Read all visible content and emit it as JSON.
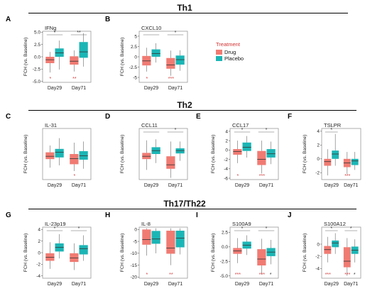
{
  "sections": [
    {
      "title": "Th1"
    },
    {
      "title": "Th2"
    },
    {
      "title": "Th17/Th22"
    }
  ],
  "legend": {
    "title": "Treatment",
    "items": [
      {
        "label": "Drug",
        "color": "#f07b73"
      },
      {
        "label": "Placebo",
        "color": "#1cb5b5"
      }
    ]
  },
  "colors": {
    "drug": "#f07b73",
    "placebo": "#1cb5b5",
    "sig_star": "#d23a3a"
  },
  "chart_data": [
    {
      "panel": "A",
      "type": "box",
      "title": "IFNg",
      "ylabel": "FCH (vs. Baseline)",
      "categories": [
        "Day29",
        "Day71"
      ],
      "ylim": [
        -5.2,
        5.2
      ],
      "yticks": [
        -5.0,
        -2.5,
        0.0,
        2.5,
        5.0
      ],
      "tick_labels": [
        "-5.0",
        "-2.5",
        "0.0",
        "2.5",
        "5.0"
      ],
      "series": [
        {
          "name": "Drug",
          "boxes": [
            {
              "whisker_low": -3.2,
              "q1": -1.3,
              "median": -0.6,
              "q3": 0.0,
              "whisker_high": 1.0
            },
            {
              "whisker_low": -3.0,
              "q1": -1.6,
              "median": -0.9,
              "q3": 0.1,
              "whisker_high": 1.3
            }
          ]
        },
        {
          "name": "Placebo",
          "boxes": [
            {
              "whisker_low": -2.6,
              "q1": 0.0,
              "median": 0.8,
              "q3": 1.7,
              "whisker_high": 3.3
            },
            {
              "whisker_low": -2.0,
              "q1": -0.2,
              "median": 1.0,
              "q3": 3.0,
              "whisker_high": 4.8
            }
          ]
        }
      ],
      "brackets": [
        {
          "label": "*"
        },
        {
          "label": "**"
        }
      ],
      "below": [
        {
          "label": "*"
        },
        {
          "label": "**"
        }
      ]
    },
    {
      "panel": "B",
      "type": "box",
      "title": "CXCL10",
      "ylabel": "FCH (vs. Baseline)",
      "categories": [
        "Day29",
        "Day71"
      ],
      "ylim": [
        -6.2,
        6.2
      ],
      "yticks": [
        -5,
        -2.5,
        0,
        2.5,
        5
      ],
      "tick_labels": [
        "-5",
        "-2.5",
        "0",
        "2.5",
        "5"
      ],
      "series": [
        {
          "name": "Drug",
          "boxes": [
            {
              "whisker_low": -3.6,
              "q1": -2.1,
              "median": -1.0,
              "q3": 0.2,
              "whisker_high": 2.2
            },
            {
              "whisker_low": -4.6,
              "q1": -2.9,
              "median": -2.0,
              "q3": -0.3,
              "whisker_high": 1.5
            }
          ]
        },
        {
          "name": "Placebo",
          "boxes": [
            {
              "whisker_low": -1.4,
              "q1": 0.0,
              "median": 0.8,
              "q3": 1.8,
              "whisker_high": 3.3
            },
            {
              "whisker_low": -3.4,
              "q1": -1.9,
              "median": -0.7,
              "q3": 0.3,
              "whisker_high": 1.6
            }
          ]
        }
      ],
      "brackets": [
        {
          "label": ""
        },
        {
          "label": "*"
        }
      ],
      "below": [
        {
          "label": "*"
        },
        {
          "label": "***"
        }
      ]
    },
    {
      "panel": "C",
      "type": "box",
      "title": "IL-31",
      "ylabel": "FCH (vs. Baseline)",
      "categories": [
        "Day29",
        "Day71"
      ],
      "ylim": [
        -4.5,
        4.5
      ],
      "yticks": [],
      "tick_labels": [],
      "series": [
        {
          "name": "Drug",
          "boxes": [
            {
              "whisker_low": -2.4,
              "q1": -0.9,
              "median": -0.4,
              "q3": 0.3,
              "whisker_high": 1.5
            },
            {
              "whisker_low": -3.0,
              "q1": -1.8,
              "median": -0.8,
              "q3": 0.0,
              "whisker_high": 2.0
            }
          ]
        },
        {
          "name": "Placebo",
          "boxes": [
            {
              "whisker_low": -2.0,
              "q1": -0.6,
              "median": 0.3,
              "q3": 0.9,
              "whisker_high": 2.8
            },
            {
              "whisker_low": -2.6,
              "q1": -1.0,
              "median": -0.3,
              "q3": 0.5,
              "whisker_high": 2.2
            }
          ]
        }
      ],
      "brackets": [],
      "below": [
        {
          "label": ""
        },
        {
          "label": "*"
        }
      ]
    },
    {
      "panel": "D",
      "type": "box",
      "title": "CCL11",
      "ylabel": "FCH (vs. Baseline)",
      "categories": [
        "Day29",
        "Day71"
      ],
      "ylim": [
        -4.5,
        4.5
      ],
      "yticks": [],
      "tick_labels": [],
      "series": [
        {
          "name": "Drug",
          "boxes": [
            {
              "whisker_low": -2.8,
              "q1": -0.9,
              "median": -0.4,
              "q3": 0.2,
              "whisker_high": 2.4
            },
            {
              "whisker_low": -4.2,
              "q1": -2.6,
              "median": -1.9,
              "q3": -0.4,
              "whisker_high": 2.2
            }
          ]
        },
        {
          "name": "Placebo",
          "boxes": [
            {
              "whisker_low": -1.6,
              "q1": 0.0,
              "median": 0.6,
              "q3": 1.2,
              "whisker_high": 2.6
            },
            {
              "whisker_low": -1.2,
              "q1": 0.1,
              "median": 0.6,
              "q3": 1.0,
              "whisker_high": 2.2
            }
          ]
        }
      ],
      "brackets": [
        {
          "label": ""
        },
        {
          "label": "*"
        }
      ],
      "below": []
    },
    {
      "panel": "E",
      "type": "box",
      "title": "CCL17",
      "ylabel": "FCH (vs. Baseline)",
      "categories": [
        "Day29",
        "Day71"
      ],
      "ylim": [
        -6.3,
        4.6
      ],
      "yticks": [
        -6,
        -4,
        -2,
        0,
        2,
        4
      ],
      "tick_labels": [
        "-6",
        "-4",
        "-2",
        "0",
        "2",
        "4"
      ],
      "series": [
        {
          "name": "Drug",
          "boxes": [
            {
              "whisker_low": -2.8,
              "q1": -1.0,
              "median": -0.3,
              "q3": 0.2,
              "whisker_high": 2.0
            },
            {
              "whisker_low": -5.0,
              "q1": -3.2,
              "median": -2.0,
              "q3": -0.2,
              "whisker_high": 2.0
            }
          ]
        },
        {
          "name": "Placebo",
          "boxes": [
            {
              "whisker_low": -1.6,
              "q1": -0.2,
              "median": 0.6,
              "q3": 1.6,
              "whisker_high": 3.0
            },
            {
              "whisker_low": -3.0,
              "q1": -1.6,
              "median": -0.8,
              "q3": 0.2,
              "whisker_high": 1.8
            }
          ]
        }
      ],
      "brackets": [
        {
          "label": "*"
        },
        {
          "label": "*"
        }
      ],
      "below": [
        {
          "label": "*"
        },
        {
          "label": "***"
        }
      ]
    },
    {
      "panel": "F",
      "type": "box",
      "title": "TSLPR",
      "ylabel": "FCH (vs. Baseline)",
      "categories": [
        "Day29",
        "Day71"
      ],
      "ylim": [
        -3.0,
        4.4
      ],
      "yticks": [
        -2,
        0,
        2,
        4
      ],
      "tick_labels": [
        "-2",
        "0",
        "2",
        "4"
      ],
      "series": [
        {
          "name": "Drug",
          "boxes": [
            {
              "whisker_low": -2.4,
              "q1": -1.0,
              "median": -0.4,
              "q3": 0.0,
              "whisker_high": 1.4
            },
            {
              "whisker_low": -2.2,
              "q1": -1.2,
              "median": -0.6,
              "q3": 0.0,
              "whisker_high": 1.0
            }
          ]
        },
        {
          "name": "Placebo",
          "boxes": [
            {
              "whisker_low": -1.0,
              "q1": 0.0,
              "median": 0.7,
              "q3": 1.2,
              "whisker_high": 3.6
            },
            {
              "whisker_low": -1.6,
              "q1": -0.9,
              "median": -0.3,
              "q3": 0.0,
              "whisker_high": 1.0
            }
          ]
        }
      ],
      "brackets": [
        {
          "label": "*"
        }
      ],
      "below": [
        {
          "label": ""
        },
        {
          "label": "***"
        }
      ]
    },
    {
      "panel": "G",
      "type": "box",
      "title": "IL-23p19",
      "ylabel": "FCH (vs. Baseline)",
      "categories": [
        "Day29",
        "Day71"
      ],
      "ylim": [
        -4.4,
        4.4
      ],
      "yticks": [
        -4,
        -2,
        0,
        2,
        4
      ],
      "tick_labels": [
        "-4",
        "-2",
        "0",
        "2",
        "4"
      ],
      "series": [
        {
          "name": "Drug",
          "boxes": [
            {
              "whisker_low": -2.8,
              "q1": -1.4,
              "median": -0.8,
              "q3": -0.1,
              "whisker_high": 1.8
            },
            {
              "whisker_low": -3.0,
              "q1": -1.6,
              "median": -0.9,
              "q3": -0.1,
              "whisker_high": 1.6
            }
          ]
        },
        {
          "name": "Placebo",
          "boxes": [
            {
              "whisker_low": -1.0,
              "q1": 0.2,
              "median": 0.9,
              "q3": 1.6,
              "whisker_high": 3.2
            },
            {
              "whisker_low": -1.4,
              "q1": -0.3,
              "median": 0.7,
              "q3": 1.3,
              "whisker_high": 3.0
            }
          ]
        }
      ],
      "brackets": [
        {
          "label": "*"
        },
        {
          "label": "*"
        }
      ],
      "below": []
    },
    {
      "panel": "H",
      "type": "box",
      "title": "IL-8",
      "ylabel": "FCH (vs. Baseline)",
      "categories": [
        "Day29",
        "Day71"
      ],
      "ylim": [
        -20.5,
        1.0
      ],
      "yticks": [
        0,
        -5,
        -10,
        -15,
        -20
      ],
      "tick_labels": [
        "0",
        "-5",
        "-10",
        "-15",
        "-20"
      ],
      "series": [
        {
          "name": "Drug",
          "boxes": [
            {
              "whisker_low": -11.0,
              "q1": -6.4,
              "median": -4.2,
              "q3": 0.0,
              "whisker_high": 0.5
            },
            {
              "whisker_low": -15.0,
              "q1": -10.2,
              "median": -7.8,
              "q3": -0.5,
              "whisker_high": 0.5
            }
          ]
        },
        {
          "name": "Placebo",
          "boxes": [
            {
              "whisker_low": -10.0,
              "q1": -6.0,
              "median": -4.0,
              "q3": -0.6,
              "whisker_high": 0.5
            },
            {
              "whisker_low": -10.5,
              "q1": -7.5,
              "median": -3.6,
              "q3": -0.5,
              "whisker_high": 0.5
            }
          ]
        }
      ],
      "brackets": [],
      "below": [
        {
          "label": "*"
        },
        {
          "label": "**"
        }
      ]
    },
    {
      "panel": "I",
      "type": "box",
      "title": "S100A9",
      "ylabel": "FCH (vs. Baseline)",
      "categories": [
        "Day29",
        "Day71"
      ],
      "ylim": [
        -5.4,
        3.4
      ],
      "yticks": [
        2.5,
        0.0,
        -2.5,
        -5.0
      ],
      "tick_labels": [
        "2.5",
        "0.0",
        "-2.5",
        "-5.0"
      ],
      "series": [
        {
          "name": "Drug",
          "boxes": [
            {
              "whisker_low": -2.8,
              "q1": -1.2,
              "median": -0.7,
              "q3": -0.2,
              "whisker_high": 1.5
            },
            {
              "whisker_low": -4.8,
              "q1": -3.2,
              "median": -2.1,
              "q3": -0.4,
              "whisker_high": 1.4
            }
          ]
        },
        {
          "name": "Placebo",
          "boxes": [
            {
              "whisker_low": -1.4,
              "q1": -0.3,
              "median": 0.3,
              "q3": 0.9,
              "whisker_high": 2.0
            },
            {
              "whisker_low": -3.0,
              "q1": -1.6,
              "median": -0.9,
              "q3": -0.2,
              "whisker_high": 1.2
            }
          ]
        }
      ],
      "brackets": [
        {
          "label": "*"
        },
        {
          "label": "*"
        }
      ],
      "below": [
        {
          "label": "***"
        },
        {
          "label": "***"
        },
        {
          "label": "*"
        }
      ]
    },
    {
      "panel": "J",
      "type": "box",
      "title": "S100A12",
      "ylabel": "FCH (vs. Baseline)",
      "categories": [
        "Day29",
        "Day71"
      ],
      "ylim": [
        -5.6,
        2.8
      ],
      "yticks": [
        0,
        -2,
        -4
      ],
      "tick_labels": [
        "0",
        "-2",
        "-4"
      ],
      "series": [
        {
          "name": "Drug",
          "boxes": [
            {
              "whisker_low": -3.0,
              "q1": -1.6,
              "median": -0.9,
              "q3": -0.3,
              "whisker_high": 1.2
            },
            {
              "whisker_low": -5.2,
              "q1": -3.8,
              "median": -2.8,
              "q3": -0.5,
              "whisker_high": 1.0
            }
          ]
        },
        {
          "name": "Placebo",
          "boxes": [
            {
              "whisker_low": -1.6,
              "q1": -0.5,
              "median": 0.2,
              "q3": 0.6,
              "whisker_high": 1.8
            },
            {
              "whisker_low": -3.0,
              "q1": -1.6,
              "median": -1.0,
              "q3": -0.4,
              "whisker_high": 0.8
            }
          ]
        }
      ],
      "brackets": [
        {
          "label": "*"
        },
        {
          "label": "*"
        }
      ],
      "below": [
        {
          "label": "***"
        },
        {
          "label": "***"
        },
        {
          "label": "*"
        }
      ]
    }
  ]
}
